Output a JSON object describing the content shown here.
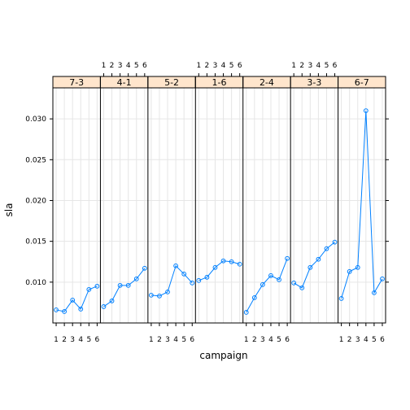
{
  "chart_data": {
    "type": "line",
    "layout": "lattice-panels",
    "xlabel": "campaign",
    "ylabel": "sla",
    "x": [
      1,
      2,
      3,
      4,
      5,
      6
    ],
    "xlim": [
      0.6,
      6.4
    ],
    "ylim": [
      0.005,
      0.0338
    ],
    "yticks": [
      0.01,
      0.015,
      0.02,
      0.025,
      0.03
    ],
    "ytick_labels": [
      "0.010",
      "0.015",
      "0.020",
      "0.025",
      "0.030"
    ],
    "xtick_labels": [
      "1",
      "2",
      "3",
      "4",
      "5",
      "6"
    ],
    "grid": true,
    "colors": {
      "line": "#0080ff",
      "strip_bg": "#ffe5cc",
      "grid": "#e6e6e6",
      "frame": "#000000"
    },
    "panels": [
      {
        "name": "7-3",
        "values": [
          0.0066,
          0.0064,
          0.0078,
          0.0067,
          0.0091,
          0.0095
        ]
      },
      {
        "name": "4-1",
        "values": [
          0.007,
          0.0077,
          0.0096,
          0.0096,
          0.0104,
          0.0117
        ]
      },
      {
        "name": "5-2",
        "values": [
          0.0084,
          0.0083,
          0.0088,
          0.012,
          0.011,
          0.0099
        ]
      },
      {
        "name": "1-6",
        "values": [
          0.0102,
          0.0106,
          0.0118,
          0.0126,
          0.0125,
          0.0122
        ]
      },
      {
        "name": "2-4",
        "values": [
          0.0063,
          0.0081,
          0.0097,
          0.0108,
          0.0103,
          0.0129
        ]
      },
      {
        "name": "3-3",
        "values": [
          0.0099,
          0.0093,
          0.0118,
          0.0128,
          0.0141,
          0.0149
        ]
      },
      {
        "name": "6-7",
        "values": [
          0.008,
          0.0113,
          0.0118,
          0.031,
          0.0087,
          0.0104
        ]
      }
    ]
  }
}
